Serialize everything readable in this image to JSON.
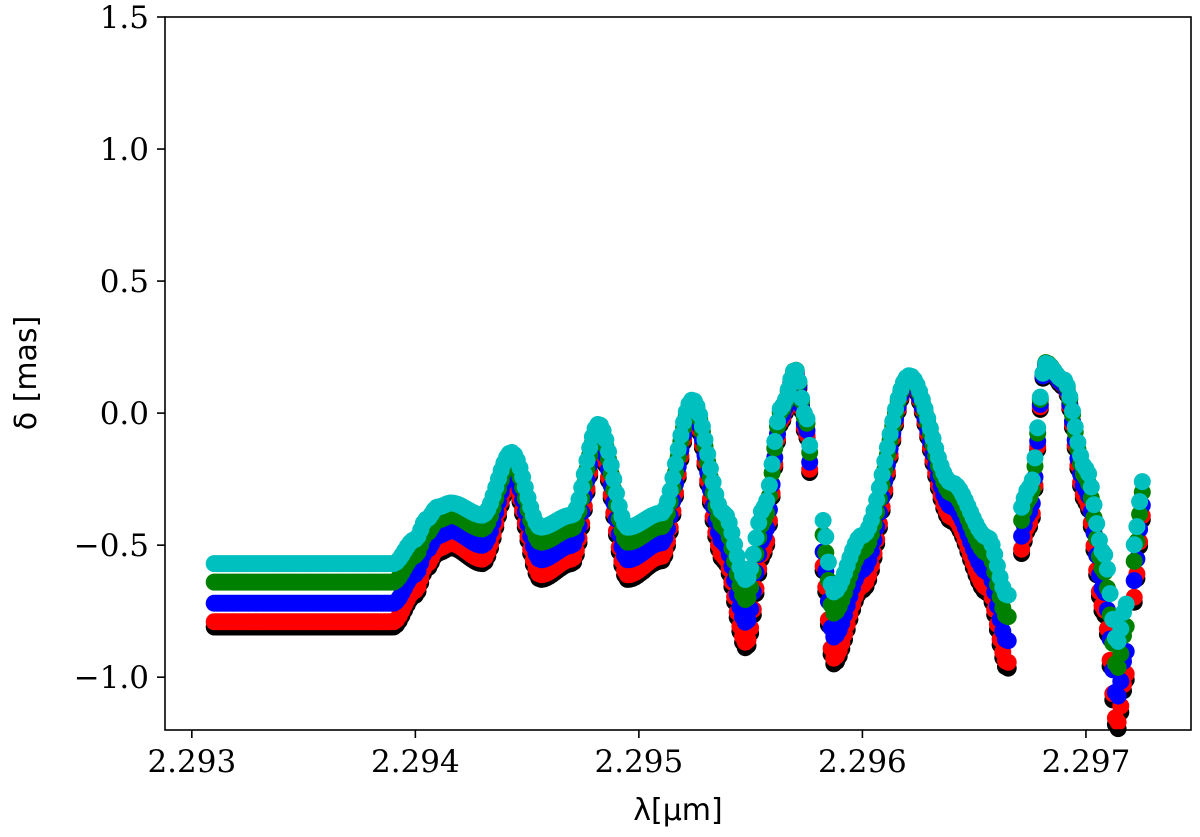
{
  "chart_data": {
    "type": "scatter",
    "title": "",
    "xlabel": "λ[μm]",
    "ylabel": "δ [mas]",
    "xlim": [
      2.29288,
      2.29747
    ],
    "ylim": [
      -1.2,
      1.5
    ],
    "xticks": [
      2.293,
      2.294,
      2.295,
      2.296,
      2.297
    ],
    "xtick_labels": [
      "2.293",
      "2.294",
      "2.295",
      "2.296",
      "2.297"
    ],
    "yticks": [
      -1.0,
      -0.5,
      0.0,
      0.5,
      1.0,
      1.5
    ],
    "ytick_labels": [
      "−1.0",
      "−0.5",
      "0.0",
      "0.5",
      "1.0",
      "1.5"
    ],
    "grid": false,
    "legend": "none",
    "base_profile": {
      "x": [
        2.2931,
        2.2939,
        2.294,
        2.29405,
        2.2941,
        2.29416,
        2.2943,
        2.29443,
        2.29456,
        2.2947,
        2.29482,
        2.29495,
        2.2951,
        2.29524,
        2.29538,
        2.29548,
        2.29556,
        2.29564,
        2.2957,
        2.29575,
        2.29578,
        2.29582,
        2.29587,
        2.296,
        2.29621,
        2.2964,
        2.29656,
        2.29665,
        2.29668,
        2.29675,
        2.29682,
        2.2969,
        2.297,
        2.29708,
        2.29714,
        2.29718,
        2.29721,
        2.29726
      ],
      "y": [
        0.0,
        0.0,
        0.12,
        0.22,
        0.28,
        0.3,
        0.24,
        0.55,
        0.18,
        0.24,
        0.69,
        0.18,
        0.25,
        0.81,
        0.25,
        -0.08,
        0.28,
        0.78,
        0.96,
        0.72,
        0.42,
        0.22,
        -0.14,
        0.14,
        0.93,
        0.4,
        0.13,
        -0.16,
        0.2,
        0.38,
        0.99,
        0.91,
        0.47,
        0.05,
        -0.39,
        -0.2,
        0.08,
        0.43
      ]
    },
    "series": [
      {
        "color": "#000000",
        "offset": -0.81,
        "scale": 0.81
      },
      {
        "color": "#ff0000",
        "offset": -0.79,
        "scale": 0.8
      },
      {
        "color": "#0000ff",
        "offset": -0.72,
        "scale": 0.74
      },
      {
        "color": "#008000",
        "offset": -0.64,
        "scale": 0.68
      },
      {
        "color": "#00bfbf",
        "offset": -0.57,
        "scale": 0.62
      }
    ],
    "gaps": [
      [
        2.29577,
        2.29582
      ],
      [
        2.29666,
        2.2967
      ],
      [
        2.29719,
        2.29721
      ]
    ]
  }
}
